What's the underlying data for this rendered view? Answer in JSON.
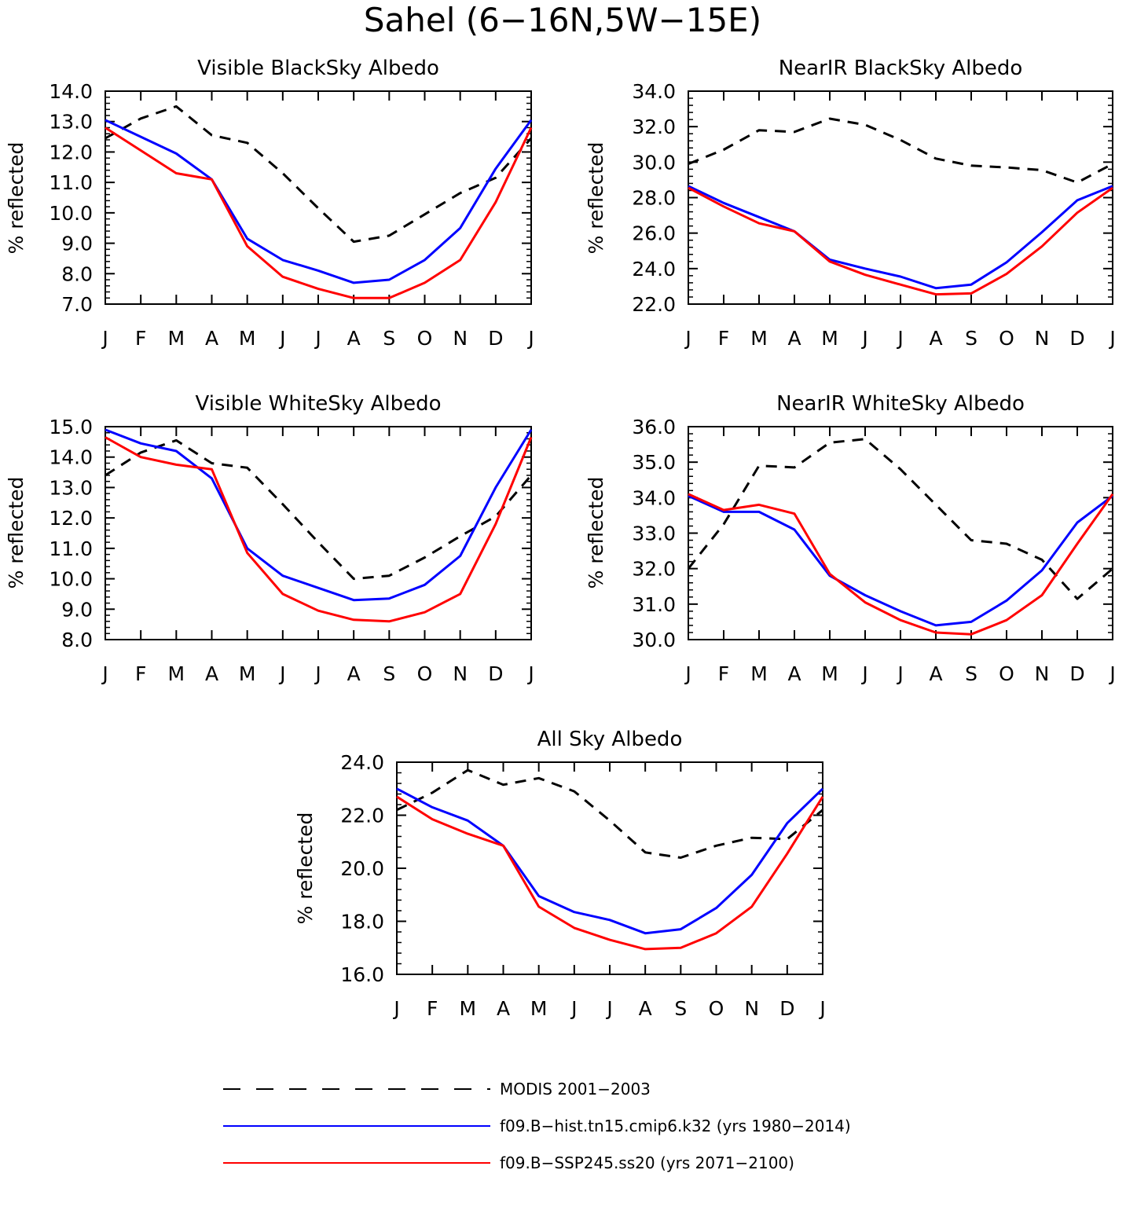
{
  "title": "Sahel (6−16N,5W−15E)",
  "months": [
    "J",
    "F",
    "M",
    "A",
    "M",
    "J",
    "J",
    "A",
    "S",
    "O",
    "N",
    "D",
    "J"
  ],
  "colors": {
    "modis": "#000000",
    "hist": "#0000ff",
    "ssp": "#ff0000"
  },
  "legend": [
    {
      "key": "modis",
      "label": "MODIS 2001−2003",
      "style": "dashed"
    },
    {
      "key": "hist",
      "label": "f09.B−hist.tn15.cmip6.k32 (yrs 1980−2014)",
      "style": "solid"
    },
    {
      "key": "ssp",
      "label": "f09.B−SSP245.ss20 (yrs 2071−2100)",
      "style": "solid"
    }
  ],
  "chart_data": [
    {
      "type": "line",
      "title": "Visible BlackSky Albedo",
      "ylabel": "% reflected",
      "ylim": [
        7,
        14
      ],
      "yticks": [
        "7.0",
        "8.0",
        "9.0",
        "10.0",
        "11.0",
        "12.0",
        "13.0",
        "14.0"
      ],
      "series": [
        {
          "key": "modis",
          "values": [
            12.45,
            13.1,
            13.5,
            12.55,
            12.3,
            11.3,
            10.15,
            9.05,
            9.25,
            9.95,
            10.65,
            11.15,
            12.45
          ]
        },
        {
          "key": "hist",
          "values": [
            13.05,
            12.5,
            11.95,
            11.1,
            9.15,
            8.45,
            8.1,
            7.7,
            7.8,
            8.45,
            9.5,
            11.45,
            13.05
          ]
        },
        {
          "key": "ssp",
          "values": [
            12.8,
            12.05,
            11.3,
            11.1,
            8.9,
            7.9,
            7.5,
            7.2,
            7.2,
            7.7,
            8.45,
            10.35,
            12.8
          ]
        }
      ]
    },
    {
      "type": "line",
      "title": "NearIR BlackSky Albedo",
      "ylabel": "% reflected",
      "ylim": [
        22,
        34
      ],
      "yticks": [
        "22.0",
        "24.0",
        "26.0",
        "28.0",
        "30.0",
        "32.0",
        "34.0"
      ],
      "series": [
        {
          "key": "modis",
          "values": [
            29.9,
            30.7,
            31.8,
            31.7,
            32.45,
            32.1,
            31.25,
            30.2,
            29.8,
            29.7,
            29.55,
            28.85,
            29.9
          ]
        },
        {
          "key": "hist",
          "values": [
            28.65,
            27.7,
            26.9,
            26.1,
            24.5,
            24.0,
            23.55,
            22.9,
            23.1,
            24.35,
            26.05,
            27.85,
            28.65
          ]
        },
        {
          "key": "ssp",
          "values": [
            28.55,
            27.5,
            26.55,
            26.1,
            24.4,
            23.65,
            23.1,
            22.55,
            22.6,
            23.7,
            25.25,
            27.15,
            28.55
          ]
        }
      ]
    },
    {
      "type": "line",
      "title": "Visible WhiteSky Albedo",
      "ylabel": "% reflected",
      "ylim": [
        8,
        15
      ],
      "yticks": [
        "8.0",
        "9.0",
        "10.0",
        "11.0",
        "12.0",
        "13.0",
        "14.0",
        "15.0"
      ],
      "series": [
        {
          "key": "modis",
          "values": [
            13.4,
            14.15,
            14.55,
            13.8,
            13.65,
            12.45,
            11.2,
            10.0,
            10.1,
            10.7,
            11.4,
            12.05,
            13.4
          ]
        },
        {
          "key": "hist",
          "values": [
            14.9,
            14.45,
            14.2,
            13.3,
            11.0,
            10.1,
            9.7,
            9.3,
            9.35,
            9.8,
            10.75,
            13.0,
            14.9
          ]
        },
        {
          "key": "ssp",
          "values": [
            14.65,
            14.0,
            13.75,
            13.6,
            10.85,
            9.5,
            8.95,
            8.65,
            8.6,
            8.9,
            9.5,
            11.8,
            14.65
          ]
        }
      ]
    },
    {
      "type": "line",
      "title": "NearIR WhiteSky Albedo",
      "ylabel": "% reflected",
      "ylim": [
        30,
        36
      ],
      "yticks": [
        "30.0",
        "31.0",
        "32.0",
        "33.0",
        "34.0",
        "35.0",
        "36.0"
      ],
      "series": [
        {
          "key": "modis",
          "values": [
            32.0,
            33.25,
            34.9,
            34.85,
            35.55,
            35.65,
            34.8,
            33.8,
            32.8,
            32.7,
            32.25,
            31.15,
            32.0
          ]
        },
        {
          "key": "hist",
          "values": [
            34.05,
            33.6,
            33.6,
            33.1,
            31.8,
            31.25,
            30.8,
            30.4,
            30.5,
            31.1,
            31.95,
            33.3,
            34.05
          ]
        },
        {
          "key": "ssp",
          "values": [
            34.1,
            33.65,
            33.8,
            33.55,
            31.85,
            31.05,
            30.55,
            30.2,
            30.15,
            30.55,
            31.25,
            32.7,
            34.1
          ]
        }
      ]
    },
    {
      "type": "line",
      "title": "All Sky Albedo",
      "ylabel": "% reflected",
      "ylim": [
        16,
        24
      ],
      "yticks": [
        "16.0",
        "18.0",
        "20.0",
        "22.0",
        "24.0"
      ],
      "series": [
        {
          "key": "modis",
          "values": [
            22.2,
            22.85,
            23.7,
            23.15,
            23.4,
            22.9,
            21.8,
            20.6,
            20.4,
            20.85,
            21.15,
            21.1,
            22.2
          ]
        },
        {
          "key": "hist",
          "values": [
            23.0,
            22.3,
            21.8,
            20.85,
            18.95,
            18.35,
            18.05,
            17.55,
            17.7,
            18.5,
            19.75,
            21.7,
            23.0
          ]
        },
        {
          "key": "ssp",
          "values": [
            22.7,
            21.85,
            21.3,
            20.85,
            18.55,
            17.75,
            17.3,
            16.95,
            17.0,
            17.55,
            18.55,
            20.55,
            22.7
          ]
        }
      ]
    }
  ]
}
